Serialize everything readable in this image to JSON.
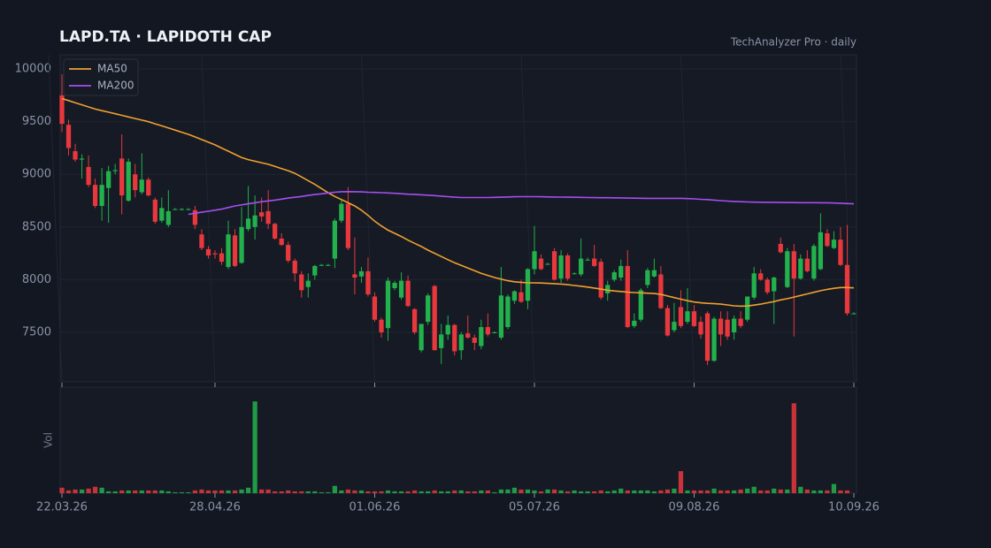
{
  "chart_data": {
    "type": "candlestick",
    "title": "LAPD.TA  ·  LAPIDOTH CAP",
    "subtitle": "TechAnalyzer Pro · daily",
    "volume_label": "Vol",
    "up_color": "#22b14c",
    "down_color": "#e8383d",
    "legend": "upper left",
    "grid": true,
    "ylim": [
      7030,
      10135
    ],
    "yticks": [
      7500,
      8000,
      8500,
      9000,
      9500,
      10000
    ],
    "volume_ylim": [
      0,
      105
    ],
    "categories": [
      "22.03.26",
      null,
      null,
      null,
      null,
      null,
      null,
      null,
      null,
      null,
      null,
      null,
      null,
      null,
      null,
      null,
      null,
      null,
      null,
      null,
      null,
      null,
      null,
      "28.04.26",
      null,
      null,
      null,
      null,
      null,
      null,
      null,
      null,
      null,
      null,
      null,
      null,
      null,
      null,
      null,
      null,
      null,
      null,
      null,
      null,
      null,
      null,
      null,
      "01.06.26",
      null,
      null,
      null,
      null,
      null,
      null,
      null,
      null,
      null,
      null,
      null,
      null,
      null,
      null,
      null,
      null,
      null,
      null,
      null,
      null,
      null,
      null,
      null,
      "05.07.26",
      null,
      null,
      null,
      null,
      null,
      null,
      null,
      null,
      null,
      null,
      null,
      null,
      null,
      null,
      null,
      null,
      null,
      null,
      null,
      null,
      null,
      null,
      null,
      "09.08.26",
      null,
      null,
      null,
      null,
      null,
      null,
      null,
      null,
      null,
      null,
      null,
      null,
      null,
      null,
      null,
      null,
      null,
      null,
      null,
      null,
      null,
      null,
      null,
      "10.09.26"
    ],
    "open": [
      9750,
      9470,
      9220,
      9140,
      9070,
      8900,
      8700,
      8870,
      9030,
      9150,
      8750,
      9000,
      8830,
      8950,
      8760,
      8560,
      8520,
      8670,
      8670,
      8670,
      8660,
      8430,
      8290,
      8250,
      8250,
      8120,
      8420,
      8160,
      8480,
      8500,
      8640,
      8650,
      8530,
      8390,
      8330,
      8180,
      8050,
      7930,
      8040,
      8140,
      8140,
      8200,
      8560,
      8720,
      8050,
      8030,
      8080,
      7840,
      7620,
      7540,
      7920,
      7830,
      7990,
      7720,
      7330,
      7600,
      7940,
      7350,
      7480,
      7570,
      7330,
      7490,
      7450,
      7370,
      7550,
      7500,
      7450,
      7550,
      7800,
      7880,
      7800,
      8100,
      8200,
      8150,
      8270,
      8010,
      8230,
      8060,
      8050,
      8190,
      8200,
      8170,
      7870,
      8000,
      8020,
      8130,
      7560,
      7620,
      7950,
      8030,
      8050,
      7730,
      7520,
      7740,
      7600,
      7700,
      7600,
      7680,
      7230,
      7630,
      7620,
      7500,
      7630,
      7620,
      7830,
      8060,
      8000,
      7890,
      8340,
      7930,
      8270,
      8010,
      8200,
      8010,
      8100,
      8440,
      8300,
      8380,
      8140,
      7680
    ],
    "high": [
      9950,
      9520,
      9290,
      9190,
      9180,
      8960,
      9060,
      9080,
      9100,
      9380,
      9150,
      9100,
      9200,
      8970,
      8780,
      8780,
      8850,
      8680,
      8680,
      8680,
      8700,
      8480,
      8320,
      8280,
      8300,
      8560,
      8480,
      8690,
      8890,
      8800,
      8780,
      8850,
      8540,
      8440,
      8360,
      8200,
      8080,
      8060,
      8140,
      8150,
      8150,
      8580,
      8760,
      8880,
      8400,
      8120,
      8210,
      7880,
      7640,
      8020,
      7990,
      8070,
      8040,
      7730,
      7580,
      7870,
      7950,
      7580,
      7660,
      7580,
      7500,
      7660,
      7480,
      7620,
      7680,
      7510,
      8120,
      7860,
      7900,
      8000,
      8110,
      8510,
      8240,
      8160,
      8300,
      8280,
      8250,
      8070,
      8390,
      8210,
      8330,
      8200,
      7990,
      8090,
      8190,
      8280,
      7680,
      7920,
      8110,
      8200,
      8130,
      7760,
      7780,
      7900,
      7920,
      7760,
      7650,
      7700,
      7650,
      7700,
      7700,
      7660,
      7700,
      7840,
      8120,
      8100,
      8020,
      8030,
      8400,
      8300,
      8340,
      8240,
      8280,
      8340,
      8630,
      8480,
      8460,
      8500,
      8520,
      7690
    ],
    "low": [
      9400,
      9180,
      9120,
      8960,
      8880,
      8680,
      8560,
      8540,
      9000,
      8620,
      8740,
      8780,
      8810,
      8790,
      8530,
      8540,
      8500,
      8660,
      8660,
      8660,
      8480,
      8280,
      8200,
      8200,
      8140,
      8100,
      8120,
      8150,
      8460,
      8380,
      8550,
      8480,
      8380,
      8320,
      8160,
      7980,
      7830,
      7830,
      8000,
      8130,
      8130,
      8110,
      8540,
      8280,
      7860,
      7970,
      7840,
      7600,
      7450,
      7420,
      7900,
      7810,
      7740,
      7480,
      7310,
      7570,
      7330,
      7200,
      7430,
      7280,
      7240,
      7440,
      7330,
      7340,
      7460,
      7490,
      7430,
      7530,
      7770,
      7780,
      7720,
      8050,
      8090,
      8140,
      7990,
      7970,
      7990,
      8050,
      8030,
      8180,
      8120,
      7810,
      7800,
      7980,
      7990,
      7540,
      7540,
      7600,
      7920,
      8020,
      7720,
      7460,
      7500,
      7540,
      7580,
      7550,
      7440,
      7190,
      7220,
      7370,
      7430,
      7430,
      7540,
      7600,
      7810,
      7990,
      7860,
      7580,
      8250,
      7920,
      7460,
      8000,
      8070,
      7990,
      8090,
      8310,
      8290,
      8130,
      7660,
      7670
    ],
    "close": [
      9480,
      9250,
      9140,
      9150,
      8900,
      8700,
      8900,
      9030,
      9040,
      8800,
      9120,
      8850,
      8950,
      8800,
      8550,
      8680,
      8650,
      8670,
      8670,
      8670,
      8520,
      8300,
      8230,
      8240,
      8170,
      8430,
      8130,
      8500,
      8580,
      8610,
      8600,
      8530,
      8390,
      8330,
      8180,
      8060,
      7900,
      7990,
      8130,
      8140,
      8140,
      8560,
      8720,
      8300,
      8020,
      8080,
      7860,
      7620,
      7500,
      7990,
      7970,
      7990,
      7750,
      7500,
      7580,
      7850,
      7330,
      7480,
      7570,
      7320,
      7480,
      7450,
      7400,
      7550,
      7480,
      7500,
      7850,
      7840,
      7890,
      7790,
      8100,
      8270,
      8100,
      8150,
      8000,
      8230,
      8010,
      8060,
      8200,
      8190,
      8130,
      7830,
      7950,
      8070,
      8130,
      7550,
      7610,
      7900,
      8090,
      8090,
      7730,
      7470,
      7600,
      7560,
      7700,
      7560,
      7480,
      7230,
      7630,
      7480,
      7460,
      7630,
      7560,
      7840,
      8060,
      8000,
      7880,
      8020,
      8260,
      8270,
      8010,
      8200,
      8080,
      8320,
      8450,
      8320,
      8380,
      8140,
      7680,
      7680
    ],
    "volume": [
      6,
      3,
      4,
      4,
      5,
      7,
      6,
      2,
      2,
      3,
      3,
      3,
      3,
      3,
      3,
      3,
      2,
      1,
      1,
      1,
      3,
      4,
      3,
      3,
      3,
      3,
      3,
      4,
      6,
      100,
      4,
      4,
      2,
      2,
      3,
      2,
      2,
      2,
      2,
      1,
      1,
      8,
      3,
      4,
      3,
      3,
      2,
      2,
      2,
      3,
      2,
      2,
      2,
      3,
      2,
      2,
      3,
      2,
      2,
      3,
      3,
      2,
      2,
      3,
      3,
      1,
      4,
      4,
      6,
      4,
      4,
      3,
      2,
      4,
      4,
      3,
      2,
      3,
      2,
      2,
      2,
      3,
      2,
      3,
      5,
      3,
      3,
      3,
      3,
      2,
      3,
      4,
      5,
      24,
      3,
      3,
      3,
      3,
      5,
      3,
      3,
      3,
      4,
      5,
      7,
      3,
      3,
      5,
      4,
      4,
      98,
      7,
      4,
      3,
      3,
      3,
      10,
      3,
      3,
      0
    ],
    "series": [
      {
        "name": "MA50",
        "color": "#f0a030",
        "values": [
          9720,
          9700,
          9680,
          9660,
          9640,
          9620,
          9605,
          9590,
          9575,
          9560,
          9545,
          9530,
          9515,
          9500,
          9480,
          9460,
          9440,
          9420,
          9400,
          9380,
          9355,
          9330,
          9305,
          9280,
          9250,
          9220,
          9190,
          9160,
          9140,
          9125,
          9110,
          9095,
          9075,
          9055,
          9035,
          9010,
          8975,
          8940,
          8905,
          8865,
          8825,
          8790,
          8760,
          8730,
          8700,
          8660,
          8610,
          8555,
          8510,
          8470,
          8440,
          8410,
          8375,
          8345,
          8315,
          8280,
          8250,
          8220,
          8190,
          8160,
          8135,
          8110,
          8085,
          8060,
          8040,
          8020,
          8005,
          7990,
          7980,
          7975,
          7970,
          7970,
          7968,
          7965,
          7962,
          7958,
          7952,
          7945,
          7938,
          7930,
          7920,
          7910,
          7900,
          7893,
          7888,
          7882,
          7878,
          7875,
          7872,
          7868,
          7860,
          7845,
          7830,
          7815,
          7800,
          7788,
          7780,
          7775,
          7772,
          7768,
          7760,
          7752,
          7748,
          7750,
          7758,
          7768,
          7780,
          7792,
          7808,
          7820,
          7835,
          7850,
          7865,
          7880,
          7895,
          7908,
          7918,
          7925,
          7925,
          7922
        ]
      },
      {
        "name": "MA200",
        "color": "#a64ff0",
        "values": [
          null,
          null,
          null,
          null,
          null,
          null,
          null,
          null,
          null,
          null,
          null,
          null,
          null,
          null,
          null,
          null,
          null,
          null,
          null,
          8620,
          8630,
          8640,
          8650,
          8660,
          8670,
          8685,
          8700,
          8710,
          8720,
          8730,
          8740,
          8748,
          8755,
          8765,
          8775,
          8782,
          8790,
          8800,
          8808,
          8815,
          8823,
          8830,
          8835,
          8836,
          8835,
          8833,
          8830,
          8828,
          8826,
          8823,
          8820,
          8816,
          8812,
          8810,
          8806,
          8802,
          8798,
          8793,
          8788,
          8783,
          8780,
          8780,
          8780,
          8780,
          8780,
          8781,
          8783,
          8785,
          8787,
          8788,
          8788,
          8788,
          8787,
          8786,
          8785,
          8784,
          8783,
          8782,
          8781,
          8780,
          8779,
          8778,
          8778,
          8777,
          8776,
          8775,
          8774,
          8773,
          8772,
          8772,
          8772,
          8772,
          8772,
          8772,
          8770,
          8767,
          8763,
          8760,
          8755,
          8750,
          8746,
          8743,
          8740,
          8738,
          8736,
          8735,
          8734,
          8734,
          8733,
          8732,
          8732,
          8731,
          8731,
          8731,
          8730,
          8730,
          8728,
          8726,
          8723,
          8720
        ]
      }
    ]
  }
}
